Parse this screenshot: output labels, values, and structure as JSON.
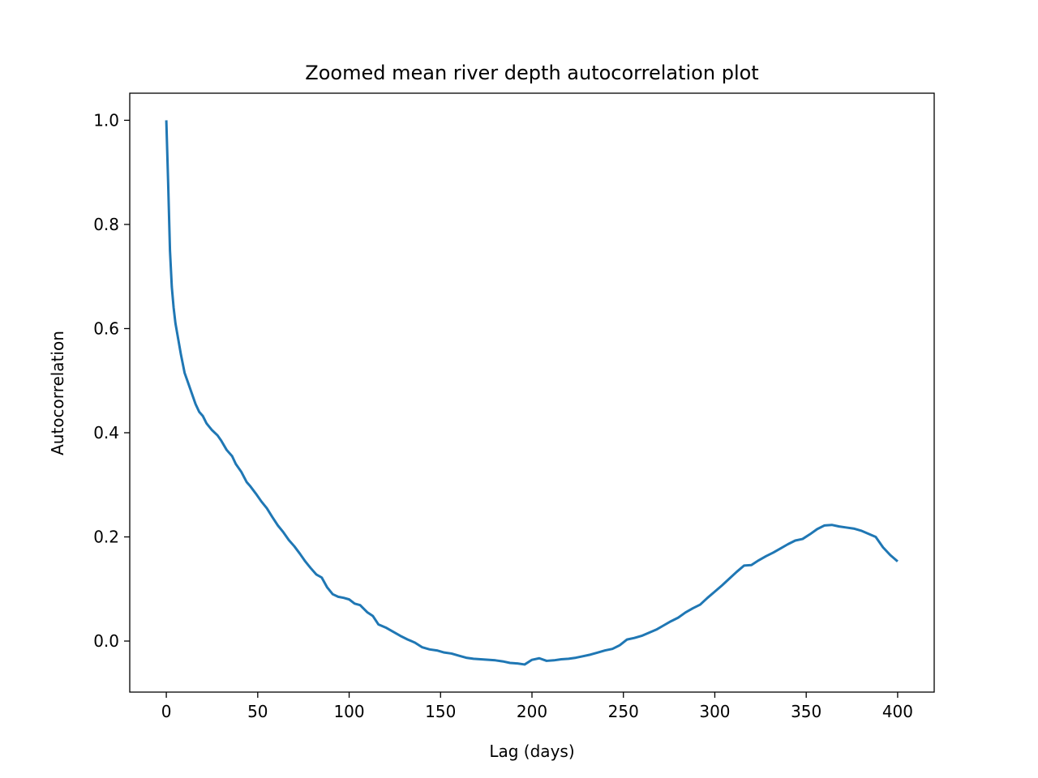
{
  "chart_data": {
    "type": "line",
    "title": "Zoomed mean river depth autocorrelation plot",
    "xlabel": "Lag (days)",
    "ylabel": "Autocorrelation",
    "xlim": [
      -20,
      420
    ],
    "ylim": [
      -0.098,
      1.052
    ],
    "xticks": [
      0,
      50,
      100,
      150,
      200,
      250,
      300,
      350,
      400
    ],
    "yticks": [
      0.0,
      0.2,
      0.4,
      0.6,
      0.8,
      1.0
    ],
    "ytick_labels": [
      "0.0",
      "0.2",
      "0.4",
      "0.6",
      "0.8",
      "1.0"
    ],
    "grid": false,
    "legend": "none",
    "series": [
      {
        "color": "#1f77b4",
        "x": [
          0,
          1,
          2,
          3,
          4,
          5,
          6,
          8,
          10,
          12,
          14,
          16,
          18,
          20,
          22,
          25,
          28,
          30,
          33,
          36,
          38,
          41,
          44,
          46,
          49,
          52,
          55,
          58,
          61,
          64,
          67,
          70,
          73,
          76,
          79,
          82,
          85,
          88,
          91,
          94,
          97,
          100,
          103,
          106,
          110,
          113,
          116,
          120,
          124,
          128,
          132,
          136,
          140,
          144,
          148,
          152,
          156,
          160,
          164,
          168,
          172,
          176,
          180,
          184,
          188,
          192,
          196,
          200,
          204,
          208,
          212,
          216,
          220,
          224,
          228,
          232,
          236,
          240,
          244,
          248,
          252,
          256,
          260,
          264,
          268,
          272,
          276,
          280,
          284,
          288,
          292,
          296,
          300,
          304,
          308,
          312,
          316,
          320,
          324,
          328,
          332,
          336,
          340,
          344,
          348,
          352,
          356,
          360,
          364,
          368,
          372,
          376,
          380,
          384,
          388,
          392,
          396,
          400
        ],
        "y": [
          1.0,
          0.88,
          0.75,
          0.68,
          0.64,
          0.61,
          0.59,
          0.55,
          0.515,
          0.495,
          0.475,
          0.455,
          0.44,
          0.432,
          0.418,
          0.405,
          0.395,
          0.385,
          0.367,
          0.355,
          0.34,
          0.325,
          0.305,
          0.297,
          0.283,
          0.268,
          0.255,
          0.238,
          0.222,
          0.209,
          0.194,
          0.182,
          0.168,
          0.153,
          0.14,
          0.128,
          0.122,
          0.103,
          0.09,
          0.085,
          0.083,
          0.08,
          0.072,
          0.069,
          0.055,
          0.048,
          0.032,
          0.026,
          0.018,
          0.01,
          0.003,
          -0.003,
          -0.012,
          -0.016,
          -0.018,
          -0.022,
          -0.024,
          -0.028,
          -0.032,
          -0.034,
          -0.035,
          -0.036,
          -0.037,
          -0.039,
          -0.042,
          -0.043,
          -0.045,
          -0.036,
          -0.033,
          -0.038,
          -0.037,
          -0.035,
          -0.034,
          -0.032,
          -0.029,
          -0.026,
          -0.022,
          -0.018,
          -0.015,
          -0.008,
          0.003,
          0.006,
          0.01,
          0.016,
          0.022,
          0.03,
          0.038,
          0.045,
          0.055,
          0.063,
          0.07,
          0.083,
          0.095,
          0.107,
          0.12,
          0.133,
          0.145,
          0.146,
          0.155,
          0.163,
          0.17,
          0.178,
          0.186,
          0.193,
          0.196,
          0.205,
          0.215,
          0.222,
          0.223,
          0.22,
          0.218,
          0.216,
          0.212,
          0.206,
          0.2,
          0.18,
          0.165,
          0.153
        ]
      }
    ]
  }
}
